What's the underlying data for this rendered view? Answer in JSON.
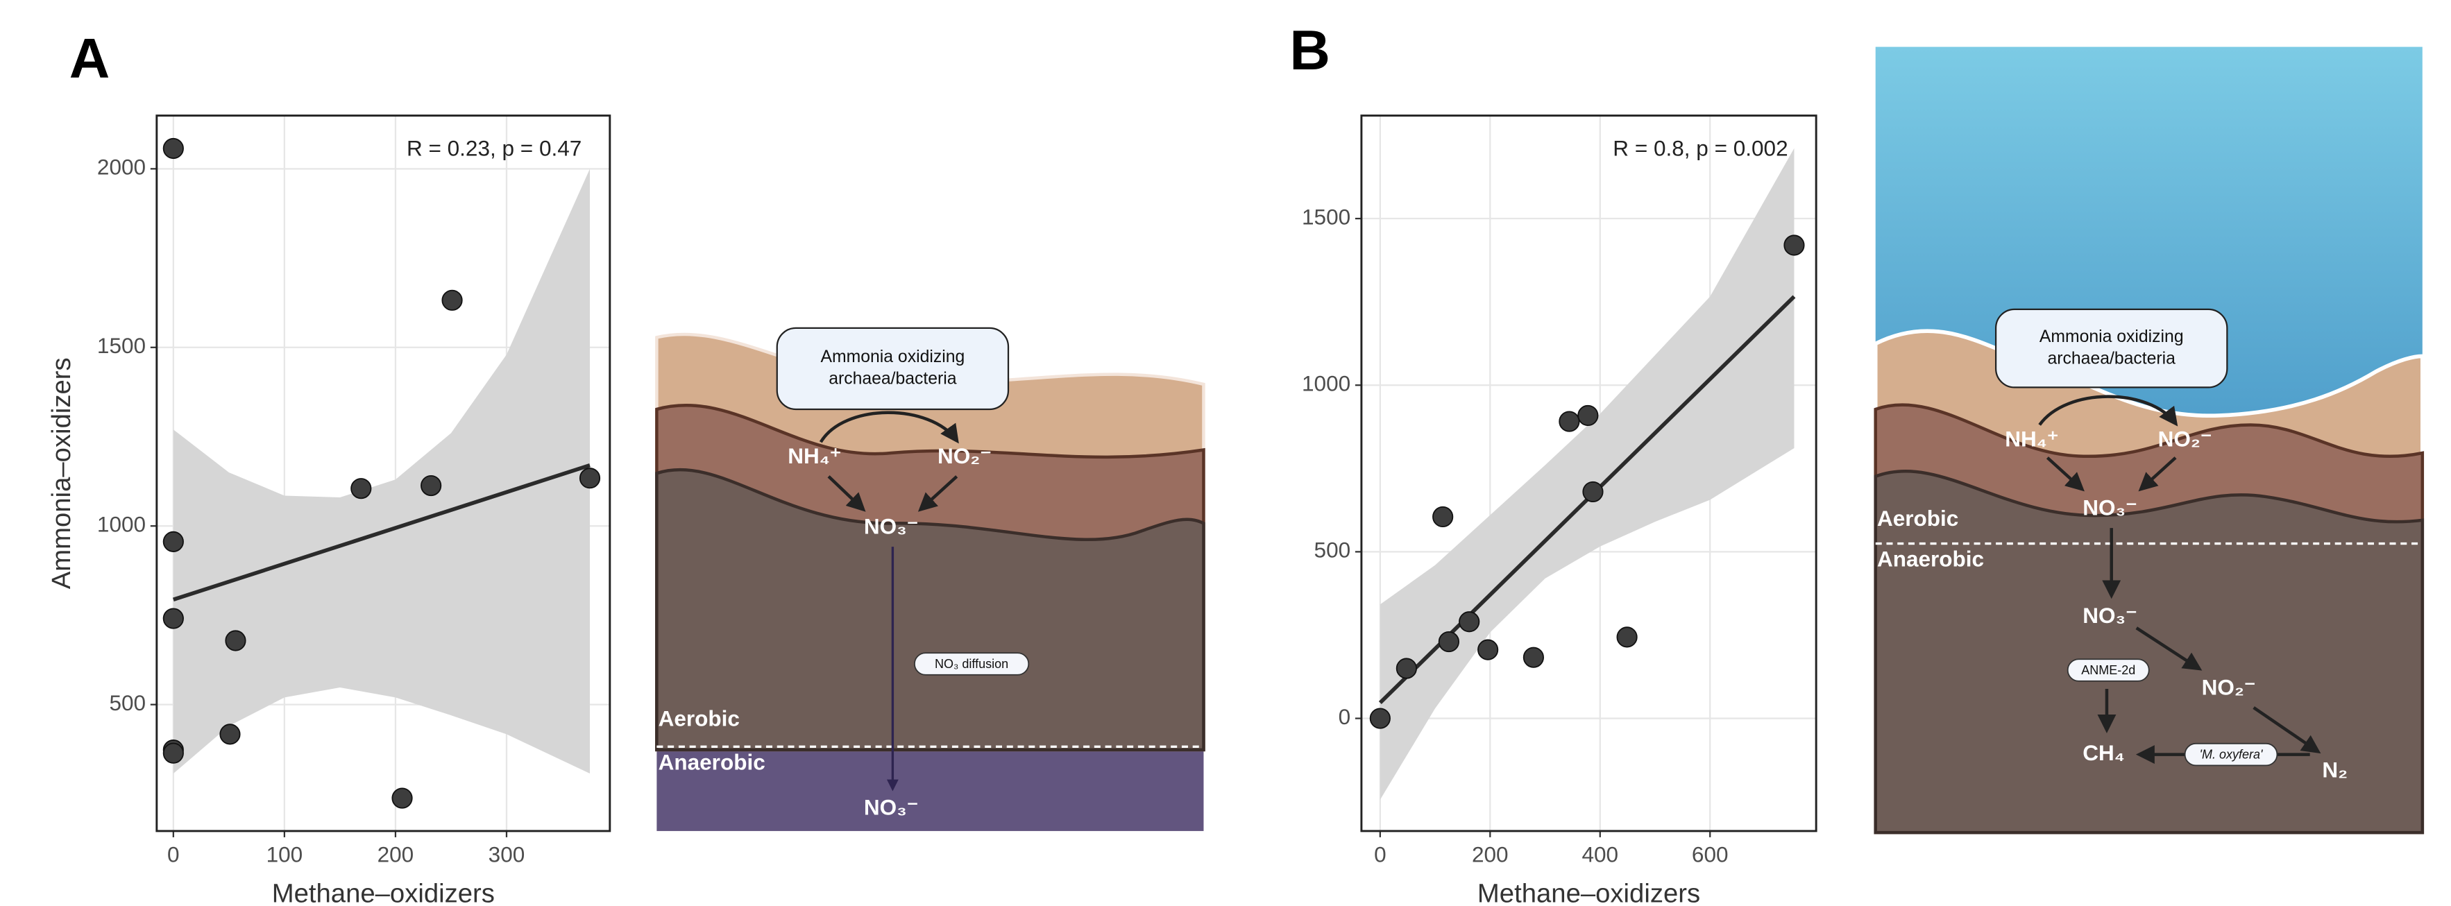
{
  "chart_data": [
    {
      "type": "scatter",
      "panel_label": "A",
      "x_label": "Methane–oxidizers",
      "y_label": "Ammonia–oxidizers",
      "annotation": "R = 0.23, p = 0.47",
      "x": [
        0,
        0,
        0,
        0,
        0,
        51,
        56,
        169,
        232,
        251,
        206,
        375
      ],
      "y": [
        2057,
        956,
        741,
        373,
        364,
        417,
        679,
        1105,
        1113,
        1632,
        238,
        1134
      ],
      "color": "#3d3d3d",
      "band_color": "#d6d6d6",
      "fit": {
        "x": [
          0,
          375
        ],
        "y": [
          794,
          1170
        ]
      },
      "band": {
        "x": [
          0,
          50,
          100,
          150,
          200,
          250,
          300,
          375
        ],
        "upper": [
          1270,
          1150,
          1085,
          1080,
          1130,
          1260,
          1480,
          2000
        ],
        "lower": [
          307,
          440,
          520,
          548,
          520,
          470,
          417,
          307
        ]
      },
      "xlim": [
        -15,
        393
      ],
      "xticks": [
        0,
        100,
        200,
        300
      ],
      "ylim": [
        146,
        2149
      ],
      "yticks": [
        500,
        1000,
        1500,
        2000
      ],
      "grid": true
    },
    {
      "type": "scatter",
      "panel_label": "B",
      "x_label": "Methane–oxidizers",
      "annotation": "R = 0.8, p = 0.002",
      "x": [
        0,
        48,
        114,
        125,
        162,
        196,
        279,
        344,
        378,
        387,
        449,
        753
      ],
      "y": [
        0,
        150,
        605,
        230,
        290,
        206,
        183,
        891,
        909,
        680,
        244,
        1420
      ],
      "color": "#3d3d3d",
      "band_color": "#d6d6d6",
      "fit": {
        "x": [
          0,
          753
        ],
        "y": [
          47,
          1266
        ]
      },
      "band": {
        "x": [
          0,
          100,
          200,
          300,
          400,
          500,
          600,
          753
        ],
        "upper": [
          342,
          460,
          610,
          760,
          914,
          1090,
          1266,
          1711
        ],
        "lower": [
          -244,
          30,
          258,
          420,
          516,
          590,
          656,
          811
        ]
      },
      "xlim": [
        -34,
        793
      ],
      "xticks": [
        0,
        200,
        400,
        600
      ],
      "ylim": [
        -338,
        1809
      ],
      "yticks": [
        0,
        500,
        1000,
        1500
      ],
      "grid": true
    }
  ],
  "diagram_a": {
    "box": [
      "Ammonia oxidizing",
      "archaea/bacteria"
    ],
    "nh4": "NH₄⁺",
    "no2": "NO₂⁻",
    "no3": "NO₃⁻",
    "diffusion": "NO₃ diffusion",
    "aerobic": "Aerobic",
    "anaerobic": "Anaerobic",
    "no3_bottom": "NO₃⁻"
  },
  "diagram_b": {
    "box": [
      "Ammonia oxidizing",
      "archaea/bacteria"
    ],
    "nh4": "NH₄⁺",
    "no2": "NO₂⁻",
    "no3": "NO₃⁻",
    "aerobic": "Aerobic",
    "anaerobic": "Anaerobic",
    "no3_low": "NO₃⁻",
    "no2_low": "NO₂⁻",
    "ch4": "CH₄",
    "n2": "N₂",
    "anme": "ANME-2d",
    "moxy": "'M. oxyfera'"
  }
}
